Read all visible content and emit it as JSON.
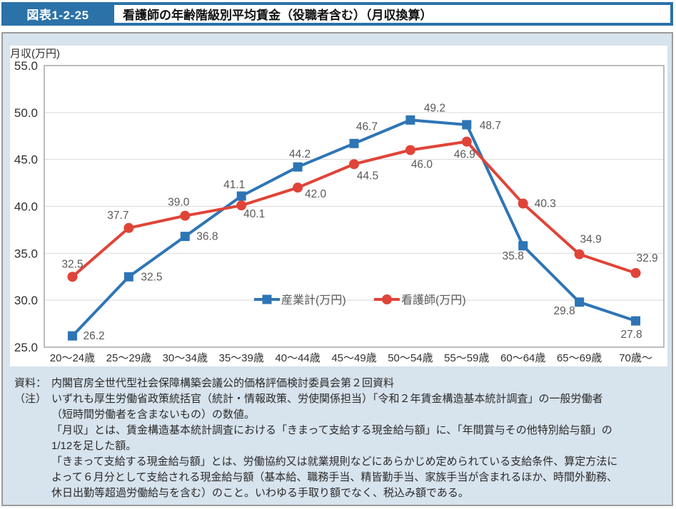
{
  "header": {
    "badge": "図表1-2-25",
    "title": "看護師の年齢階級別平均賃金（役職者含む）（月収換算）"
  },
  "colors": {
    "header_blue": "#2B72A8",
    "panel_background": "#D7E3ED",
    "panel_border": "#9B9B9B",
    "series_industry_blue": "#2E75B6",
    "series_nurse_red": "#E04438"
  },
  "chart_data": {
    "type": "line",
    "y_axis_title": "月収(万円)",
    "ylim": [
      25.0,
      55.0
    ],
    "ytick_step": 5.0,
    "grid": "horizontal",
    "legend_position": "inside-center",
    "categories": [
      "20～24歳",
      "25～29歳",
      "30～34歳",
      "35～39歳",
      "40～44歳",
      "45～49歳",
      "50～54歳",
      "55～59歳",
      "60～64歳",
      "65～69歳",
      "70歳～"
    ],
    "colors": {
      "gridline": "#D9D9D9",
      "plot_border": "#A6A6A6",
      "data_label": "#595959"
    },
    "series": [
      {
        "name": "産業計(万円)",
        "color": "#2E75B6",
        "marker": "square",
        "values": [
          26.2,
          32.5,
          36.8,
          41.1,
          44.2,
          46.7,
          49.2,
          48.7,
          35.8,
          29.8,
          27.8
        ],
        "label_offsets": [
          {
            "dx": 15,
            "dy": 5,
            "anchor": "start"
          },
          {
            "dx": 17,
            "dy": 5,
            "anchor": "start"
          },
          {
            "dx": 16,
            "dy": 5,
            "anchor": "start"
          },
          {
            "dx": -10,
            "dy": -11,
            "anchor": "middle"
          },
          {
            "dx": 3,
            "dy": -13,
            "anchor": "middle"
          },
          {
            "dx": 18,
            "dy": -19,
            "anchor": "middle"
          },
          {
            "dx": 34,
            "dy": -12,
            "anchor": "middle"
          },
          {
            "dx": 18,
            "dy": 6,
            "anchor": "start"
          },
          {
            "dx": -14,
            "dy": 19,
            "anchor": "middle"
          },
          {
            "dx": -21,
            "dy": 17,
            "anchor": "middle"
          },
          {
            "dx": -6,
            "dy": 24,
            "anchor": "middle"
          }
        ]
      },
      {
        "name": "看護師(万円)",
        "color": "#E04438",
        "marker": "circle",
        "values": [
          32.5,
          37.7,
          39.0,
          40.1,
          42.0,
          44.5,
          46.0,
          46.9,
          40.3,
          34.9,
          32.9
        ],
        "label_offsets": [
          {
            "dx": 0,
            "dy": -13,
            "anchor": "middle"
          },
          {
            "dx": -15,
            "dy": -13,
            "anchor": "middle"
          },
          {
            "dx": -9,
            "dy": -14,
            "anchor": "middle"
          },
          {
            "dx": 18,
            "dy": 17,
            "anchor": "middle"
          },
          {
            "dx": 25,
            "dy": 14,
            "anchor": "middle"
          },
          {
            "dx": 19,
            "dy": 21,
            "anchor": "middle"
          },
          {
            "dx": 16,
            "dy": 25,
            "anchor": "middle"
          },
          {
            "dx": -3,
            "dy": 23,
            "anchor": "middle"
          },
          {
            "dx": 16,
            "dy": 5,
            "anchor": "start"
          },
          {
            "dx": 16,
            "dy": -16,
            "anchor": "middle"
          },
          {
            "dx": 16,
            "dy": -16,
            "anchor": "middle"
          }
        ]
      }
    ]
  },
  "footnote": {
    "source_label": "資料：",
    "source_text": "内閣官房全世代型社会保障構築会議公的価格評価検討委員会第２回資料",
    "note_label": "（注）",
    "note_lines": [
      "いずれも厚生労働省政策統括官（統計・情報政策、労使関係担当）「令和２年賃金構造基本統計調査」の一般労働者",
      "（短時間労働者を含まないもの）の数値。",
      "「月収」とは、賃金構造基本統計調査における「きまって支給する現金給与額」に、「年間賞与その他特別給与額」の",
      "1/12を足した額。",
      "「きまって支給する現金給与額」とは、労働協約又は就業規則などにあらかじめ定められている支給条件、算定方法に",
      "よって６月分として支給される現金給与額（基本給、職務手当、精皆勤手当、家族手当が含まれるほか、時間外勤務、",
      "休日出勤等超過労働給与を含む）のこと。いわゆる手取り額でなく、税込み額である。"
    ]
  }
}
